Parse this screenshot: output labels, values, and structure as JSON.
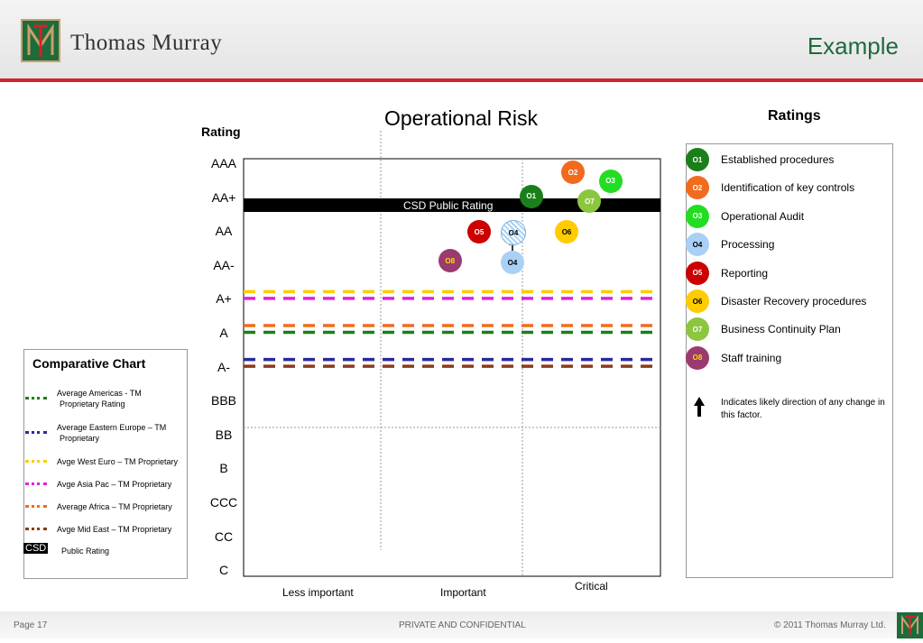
{
  "header": {
    "brand": "Thomas Murray",
    "section": "Example"
  },
  "chart": {
    "title": "Operational Risk",
    "ylabel": "Rating",
    "csd_label": "CSD Public Rating",
    "x_categories": [
      "Less important",
      "Important",
      "Critical"
    ],
    "ratings_scale": [
      "AAA",
      "AA+",
      "AA",
      "AA-",
      "A+",
      "A",
      "A-",
      "BBB",
      "BB",
      "B",
      "CCC",
      "CC",
      "C"
    ]
  },
  "chart_data": {
    "type": "scatter",
    "title": "Operational Risk",
    "ylabel": "Rating",
    "y_categories": [
      "AAA",
      "AA+",
      "AA",
      "AA-",
      "A+",
      "A",
      "A-",
      "BBB",
      "BB",
      "B",
      "CCC",
      "CC",
      "C"
    ],
    "x_categories": [
      "Less important",
      "Important",
      "Critical"
    ],
    "csd_public_rating": "AA+",
    "factors": [
      {
        "id": "O1",
        "x_frac": 0.69,
        "rating_idx": 0.95,
        "color": "#1a7f1a",
        "text_color": "#ffffff",
        "hatched": false
      },
      {
        "id": "O2",
        "x_frac": 0.79,
        "rating_idx": 0.25,
        "color": "#f26b1d",
        "text_color": "#ffffff",
        "hatched": false
      },
      {
        "id": "O3",
        "x_frac": 0.88,
        "rating_idx": 0.5,
        "color": "#22dd22",
        "text_color": "#ffffff",
        "hatched": false
      },
      {
        "id": "O4",
        "x_frac": 0.645,
        "rating_idx": 2.9,
        "color": "#a9d1f5",
        "text_color": "#000000",
        "hatched": false
      },
      {
        "id": "O4",
        "x_frac": 0.645,
        "rating_idx": 2.0,
        "color": "#c8e0f5",
        "text_color": "#000000",
        "hatched": true
      },
      {
        "id": "O5",
        "x_frac": 0.565,
        "rating_idx": 2.0,
        "color": "#cc0000",
        "text_color": "#ffffff",
        "hatched": false
      },
      {
        "id": "O6",
        "x_frac": 0.775,
        "rating_idx": 2.0,
        "color": "#ffcc00",
        "text_color": "#000000",
        "hatched": false
      },
      {
        "id": "O7",
        "x_frac": 0.83,
        "rating_idx": 1.1,
        "color": "#8cc63f",
        "text_color": "#ffffff",
        "hatched": false
      },
      {
        "id": "O8",
        "x_frac": 0.495,
        "rating_idx": 2.85,
        "color": "#9b3a6e",
        "text_color": "#ffdd00",
        "hatched": false
      }
    ],
    "arrow": {
      "from_rating_idx": 2.6,
      "to_rating_idx": 2.2,
      "x_frac": 0.645
    },
    "comparatives": [
      {
        "name": "Avge West Euro",
        "rating_idx": 4.0,
        "color": "#ffcc00"
      },
      {
        "name": "Avge Asia Pac",
        "rating_idx": 4.2,
        "color": "#e020e0"
      },
      {
        "name": "Average Africa",
        "rating_idx": 5.0,
        "color": "#f26b1d"
      },
      {
        "name": "Average Americas",
        "rating_idx": 5.2,
        "color": "#1a7f1a"
      },
      {
        "name": "Average Eastern Europe",
        "rating_idx": 6.0,
        "color": "#2a2a9c"
      },
      {
        "name": "Avge Mid East",
        "rating_idx": 6.2,
        "color": "#8b3a1a"
      }
    ]
  },
  "ratings_legend": {
    "title": "Ratings",
    "items": [
      {
        "id": "O1",
        "label": "Established procedures",
        "color": "#1a7f1a",
        "text_color": "#ffffff"
      },
      {
        "id": "O2",
        "label": "Identification of key controls",
        "color": "#f26b1d",
        "text_color": "#ffffff"
      },
      {
        "id": "O3",
        "label": "Operational Audit",
        "color": "#22dd22",
        "text_color": "#ffffff"
      },
      {
        "id": "O4",
        "label": "Processing",
        "color": "#a9d1f5",
        "text_color": "#000000"
      },
      {
        "id": "O5",
        "label": "Reporting",
        "color": "#cc0000",
        "text_color": "#ffffff"
      },
      {
        "id": "O6",
        "label": "Disaster Recovery procedures",
        "color": "#ffcc00",
        "text_color": "#000000"
      },
      {
        "id": "O7",
        "label": "Business Continuity Plan",
        "color": "#8cc63f",
        "text_color": "#ffffff"
      },
      {
        "id": "O8",
        "label": "Staff training",
        "color": "#9b3a6e",
        "text_color": "#ffdd00"
      }
    ],
    "arrow_note": "Indicates likely direction of any change in this factor."
  },
  "comparative_legend": {
    "title": "Comparative Chart",
    "items": [
      {
        "line1": "Average Americas -  TM",
        "line2": "Proprietary Rating",
        "color": "#1a7f1a"
      },
      {
        "line1": "Average Eastern Europe – TM",
        "line2": "Proprietary",
        "color": "#2a2a9c"
      },
      {
        "line1": "Avge West Euro – TM Proprietary",
        "line2": "",
        "color": "#ffcc00"
      },
      {
        "line1": "Avge Asia Pac – TM Proprietary",
        "line2": "",
        "color": "#e020e0"
      },
      {
        "line1": "Average Africa – TM Proprietary",
        "line2": "",
        "color": "#f26b1d"
      },
      {
        "line1": "Avge Mid East – TM Proprietary",
        "line2": "",
        "color": "#8b3a1a"
      }
    ],
    "csd_badge": "CSD",
    "csd_text": "Public Rating"
  },
  "footer": {
    "page": "Page 17",
    "confidential": "PRIVATE AND CONFIDENTIAL",
    "copyright": "©  2011 Thomas Murray Ltd."
  }
}
